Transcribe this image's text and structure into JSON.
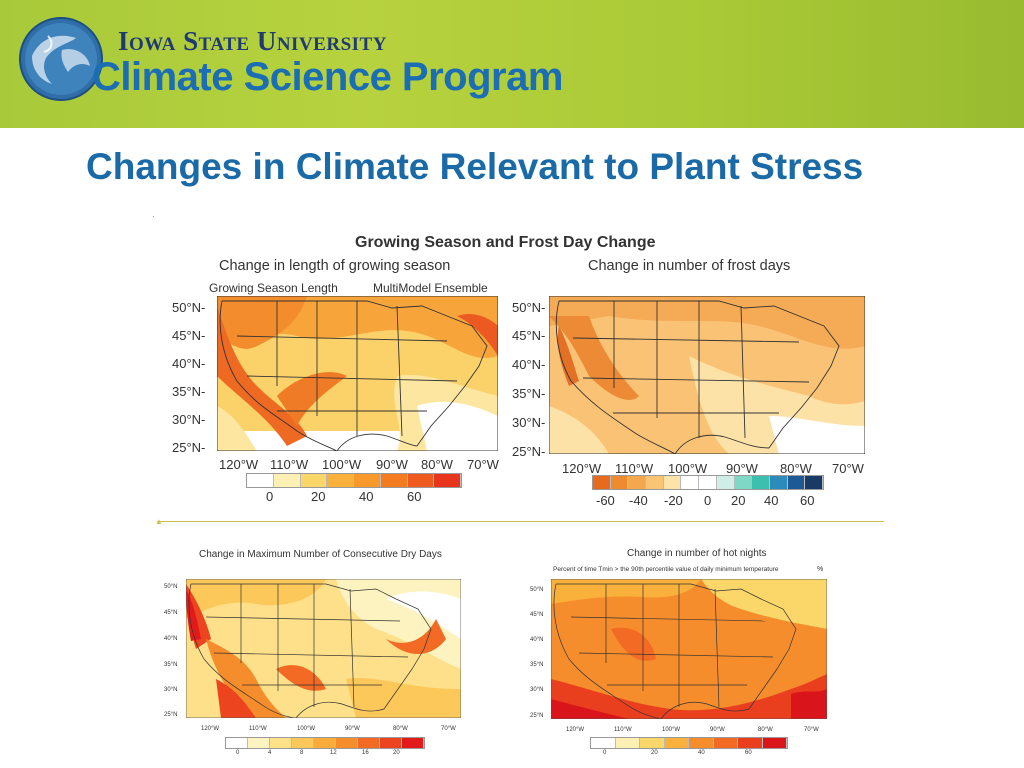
{
  "header": {
    "university": "Iowa State University",
    "program": "Climate Science Program"
  },
  "slide": {
    "title": "Changes in Climate Relevant to Plant Stress",
    "marker": "·"
  },
  "figure_top": {
    "title": "Growing Season and Frost Day Change",
    "left": {
      "subtitle": "Change in length of growing season",
      "label_left": "Growing Season Length",
      "label_right": "MultiModel Ensemble",
      "lat_ticks": [
        "50°N-",
        "45°N-",
        "40°N-",
        "35°N-",
        "30°N-",
        "25°N-"
      ],
      "lon_ticks": [
        "120°W",
        "110°W",
        "100°W",
        "90°W",
        "80°W",
        "70°W"
      ],
      "legend_ticks": [
        "0",
        "20",
        "40",
        "60"
      ],
      "legend_colors": [
        "#ffffff",
        "#fdf0b5",
        "#fbd76a",
        "#f9b13c",
        "#f79a2b",
        "#f47b20",
        "#ef5a1f",
        "#e8351e"
      ]
    },
    "right": {
      "subtitle": "Change in number of frost days",
      "lat_ticks": [
        "50°N-",
        "45°N-",
        "40°N-",
        "35°N-",
        "30°N-",
        "25°N-"
      ],
      "lon_ticks": [
        "120°W",
        "110°W",
        "100°W",
        "90°W",
        "80°W",
        "70°W"
      ],
      "legend_ticks": [
        "-60",
        "-40",
        "-20",
        "0",
        "20",
        "40",
        "60"
      ],
      "legend_colors": [
        "#e66b1e",
        "#ee8a30",
        "#f4a84e",
        "#f9c474",
        "#fde3a8",
        "#ffffff",
        "#ffffff",
        "#cfeee8",
        "#7fd8c5",
        "#3cbfae",
        "#2c8bb8",
        "#1d5a95",
        "#183a64"
      ]
    }
  },
  "figure_bottom": {
    "left": {
      "title": "Change in Maximum Number of Consecutive Dry Days",
      "lat_ticks": [
        "50°N",
        "45°N",
        "40°N",
        "35°N",
        "30°N",
        "25°N"
      ],
      "lon_ticks": [
        "120°W",
        "110°W",
        "100°W",
        "90°W",
        "80°W",
        "70°W"
      ],
      "legend_ticks": [
        "0",
        "4",
        "8",
        "12",
        "16",
        "20"
      ],
      "legend_colors": [
        "#ffffff",
        "#fdf3c0",
        "#fde28a",
        "#fcc85a",
        "#f9ac3c",
        "#f68d2c",
        "#f26a23",
        "#ec441f",
        "#e21a1c"
      ]
    },
    "right": {
      "title": "Change in number of hot nights",
      "subtitle": "Percent of time Tmin > the 90th percentile value of daily minimum temperature",
      "unit": "%",
      "lat_ticks": [
        "50°N",
        "45°N",
        "40°N",
        "35°N",
        "30°N",
        "25°N"
      ],
      "lon_ticks": [
        "120°W",
        "110°W",
        "100°W",
        "90°W",
        "80°W",
        "70°W"
      ],
      "legend_ticks": [
        "0",
        "20",
        "40",
        "60"
      ],
      "legend_colors": [
        "#ffffff",
        "#fdf0b5",
        "#fbd76a",
        "#f9b13c",
        "#f68d2c",
        "#f26a23",
        "#ea3f1e",
        "#d9141a"
      ]
    }
  }
}
